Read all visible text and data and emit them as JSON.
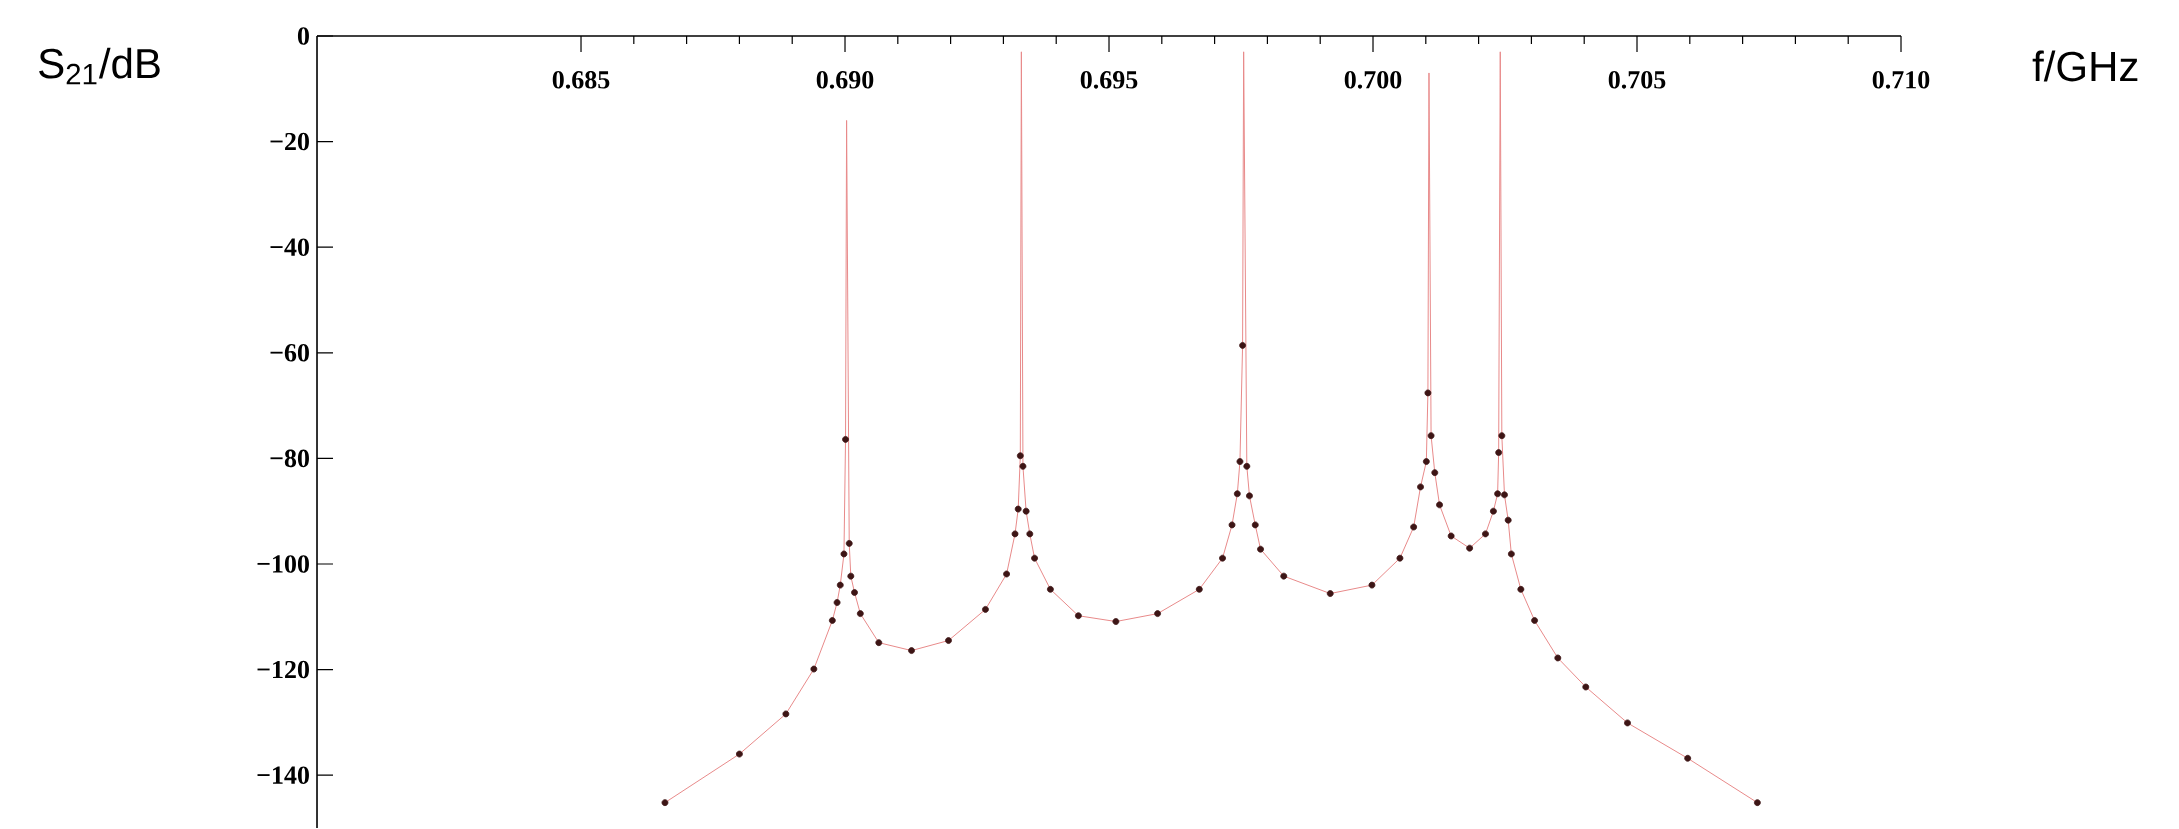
{
  "chart_data": {
    "type": "line",
    "xlabel": "f/GHz",
    "ylabel": "S$_{21}$/dB",
    "xlim": [
      0.68,
      0.71
    ],
    "ylim": [
      -150,
      0
    ],
    "xticks": [
      0.685,
      {
        "value": 0.69,
        "label": "0.690"
      },
      0.695,
      {
        "value": 0.7,
        "label": "0.700"
      },
      0.705,
      {
        "value": 0.71,
        "label": "0.710"
      }
    ],
    "yticks": [
      {
        "value": -140,
        "label": "−140"
      },
      {
        "value": -120,
        "label": "−120"
      },
      {
        "value": -100,
        "label": "−100"
      },
      {
        "value": -80,
        "label": "−80"
      },
      {
        "value": -60,
        "label": "−60"
      },
      {
        "value": -40,
        "label": "−40"
      },
      {
        "value": -20,
        "label": "−20"
      },
      0
    ],
    "series": [
      {
        "type": "line",
        "color": "#e88a8a",
        "line_style": "solid",
        "x": [
          0.68659,
          0.688,
          0.68888,
          0.68941,
          0.68976,
          0.68985,
          0.68991,
          0.68998,
          0.69001,
          0.69003,
          0.69008,
          0.69011,
          0.69018,
          0.69029,
          0.69064,
          0.69126,
          0.69196,
          0.69266,
          0.69306,
          0.69322,
          0.69328,
          0.69332,
          0.69334,
          0.69337,
          0.69343,
          0.6935,
          0.69359,
          0.69389,
          0.69442,
          0.69513,
          0.69592,
          0.69671,
          0.69715,
          0.69733,
          0.69743,
          0.69748,
          0.69753,
          0.69755,
          0.69761,
          0.69766,
          0.69777,
          0.69787,
          0.69831,
          0.69919,
          0.69998,
          0.70051,
          0.70077,
          0.7009,
          0.70101,
          0.70104,
          0.70106,
          0.7011,
          0.70117,
          0.70126,
          0.70148,
          0.70183,
          0.70213,
          0.70228,
          0.70236,
          0.70238,
          0.70241,
          0.70244,
          0.70249,
          0.70256,
          0.70262,
          0.7028,
          0.70306,
          0.7035,
          0.70403,
          0.70482,
          0.70596,
          0.70728
        ],
        "values": [
          -145.2,
          -136.0,
          -128.4,
          -119.9,
          -110.7,
          -107.3,
          -104.0,
          -98.1,
          -76.4,
          -16,
          -96.1,
          -102.3,
          -105.4,
          -109.4,
          -114.9,
          -116.4,
          -114.5,
          -108.6,
          -101.9,
          -94.3,
          -89.6,
          -79.5,
          -3,
          -81.5,
          -90.0,
          -94.3,
          -98.9,
          -104.8,
          -109.8,
          -110.9,
          -109.4,
          -104.8,
          -98.9,
          -92.6,
          -86.7,
          -80.6,
          -58.6,
          -3,
          -81.5,
          -87.1,
          -92.6,
          -97.2,
          -102.3,
          -105.6,
          -104.0,
          -98.9,
          -93.0,
          -85.4,
          -80.6,
          -67.6,
          -7,
          -75.7,
          -82.7,
          -88.8,
          -94.7,
          -97.0,
          -94.3,
          -90.0,
          -86.7,
          -78.9,
          -3,
          -75.7,
          -86.9,
          -91.7,
          -98.1,
          -104.8,
          -110.7,
          -117.8,
          -123.3,
          -130.1,
          -136.8,
          -145.2
        ]
      },
      {
        "type": "scatter",
        "color": "#3d1515",
        "marker": "circle",
        "x": [
          0.68659,
          0.688,
          0.68888,
          0.68941,
          0.68976,
          0.68985,
          0.68991,
          0.68998,
          0.69001,
          0.69008,
          0.69011,
          0.69018,
          0.69029,
          0.69064,
          0.69126,
          0.69196,
          0.69266,
          0.69306,
          0.69322,
          0.69328,
          0.69332,
          0.69337,
          0.69343,
          0.6935,
          0.69359,
          0.69389,
          0.69442,
          0.69513,
          0.69592,
          0.69671,
          0.69715,
          0.69733,
          0.69743,
          0.69748,
          0.69753,
          0.69761,
          0.69766,
          0.69777,
          0.69787,
          0.69831,
          0.69919,
          0.69998,
          0.70051,
          0.70077,
          0.7009,
          0.70101,
          0.70104,
          0.7011,
          0.70117,
          0.70126,
          0.70148,
          0.70183,
          0.70213,
          0.70228,
          0.70236,
          0.70238,
          0.70244,
          0.70249,
          0.70256,
          0.70262,
          0.7028,
          0.70306,
          0.7035,
          0.70403,
          0.70482,
          0.70596,
          0.70728
        ],
        "values": [
          -145.2,
          -136.0,
          -128.4,
          -119.9,
          -110.7,
          -107.3,
          -104.0,
          -98.1,
          -76.4,
          -96.1,
          -102.3,
          -105.4,
          -109.4,
          -114.9,
          -116.4,
          -114.5,
          -108.6,
          -101.9,
          -94.3,
          -89.6,
          -79.5,
          -81.5,
          -90.0,
          -94.3,
          -98.9,
          -104.8,
          -109.8,
          -110.9,
          -109.4,
          -104.8,
          -98.9,
          -92.6,
          -86.7,
          -80.6,
          -58.6,
          -81.5,
          -87.1,
          -92.6,
          -97.2,
          -102.3,
          -105.6,
          -104.0,
          -98.9,
          -93.0,
          -85.4,
          -80.6,
          -67.6,
          -75.7,
          -82.7,
          -88.8,
          -94.7,
          -97.0,
          -94.3,
          -90.0,
          -86.7,
          -78.9,
          -75.7,
          -86.9,
          -91.7,
          -98.1,
          -104.8,
          -110.7,
          -117.8,
          -123.3,
          -130.1,
          -136.8,
          -145.2
        ]
      }
    ]
  }
}
